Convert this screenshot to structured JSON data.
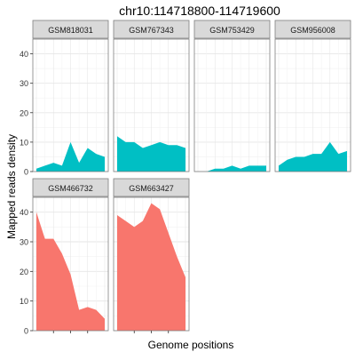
{
  "chart_data": {
    "type": "area",
    "title": "chr10:114718800-114719600",
    "xlabel": "Genome positions",
    "ylabel": "Mapped reads density",
    "ylim": [
      0,
      45
    ],
    "y_ticks": [
      0,
      10,
      20,
      30,
      40
    ],
    "grid": true,
    "facet_layout": {
      "columns": 4,
      "rows": 2
    },
    "colors": {
      "series_a": "#00bfc4",
      "series_b": "#f8766d",
      "strip": "#d9d9d9",
      "border": "#7f7f7f",
      "grid": "#ebebeb"
    },
    "panels": [
      {
        "name": "GSM818031",
        "color": "#00bfc4",
        "x": [
          0,
          1,
          2,
          3,
          4,
          5,
          6,
          7,
          8
        ],
        "y": [
          1,
          2,
          3,
          2,
          10,
          3,
          8,
          6,
          5
        ]
      },
      {
        "name": "GSM767343",
        "color": "#00bfc4",
        "x": [
          0,
          1,
          2,
          3,
          4,
          5,
          6,
          7,
          8
        ],
        "y": [
          12,
          10,
          10,
          8,
          9,
          10,
          9,
          9,
          8
        ]
      },
      {
        "name": "GSM753429",
        "color": "#00bfc4",
        "x": [
          1,
          2,
          3,
          4,
          5,
          6,
          7,
          8
        ],
        "y": [
          0,
          1,
          1,
          2,
          1,
          2,
          2,
          2
        ]
      },
      {
        "name": "GSM956008",
        "color": "#00bfc4",
        "x": [
          0,
          1,
          2,
          3,
          4,
          5,
          6,
          7,
          8
        ],
        "y": [
          2,
          4,
          5,
          5,
          6,
          6,
          10,
          6,
          7
        ]
      },
      {
        "name": "GSM466732",
        "color": "#f8766d",
        "x": [
          0,
          1,
          2,
          3,
          4,
          5,
          6,
          7,
          8
        ],
        "y": [
          40,
          31,
          31,
          26,
          19,
          7,
          8,
          7,
          4
        ]
      },
      {
        "name": "GSM663427",
        "color": "#f8766d",
        "x": [
          0,
          1,
          2,
          3,
          4,
          5,
          6,
          7,
          8
        ],
        "y": [
          39,
          37,
          35,
          37,
          43,
          41,
          33,
          25,
          18
        ]
      }
    ]
  }
}
